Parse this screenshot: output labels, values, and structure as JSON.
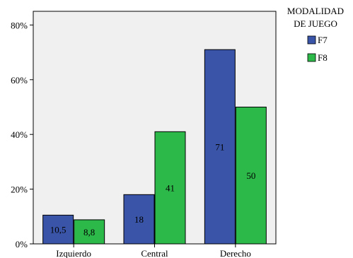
{
  "chart_data": {
    "type": "bar",
    "categories": [
      "Izquierdo",
      "Central",
      "Derecho"
    ],
    "series": [
      {
        "name": "F7",
        "values": [
          10.5,
          18,
          71
        ],
        "labels": [
          "10,5",
          "18",
          "71"
        ],
        "color": "#3a55a8"
      },
      {
        "name": "F8",
        "values": [
          8.8,
          41,
          50
        ],
        "labels": [
          "8,8",
          "41",
          "50"
        ],
        "color": "#2db84a"
      }
    ],
    "ylim": [
      0,
      85
    ],
    "yticks": [
      0,
      20,
      40,
      60,
      80
    ],
    "ytick_labels": [
      "0%",
      "20%",
      "40%",
      "60%",
      "80%"
    ],
    "legend": {
      "title_lines": [
        "MODALIDAD",
        "DE JUEGO"
      ],
      "placement": "top-right"
    },
    "plot_background": "#f0f0f0",
    "grid": false
  }
}
